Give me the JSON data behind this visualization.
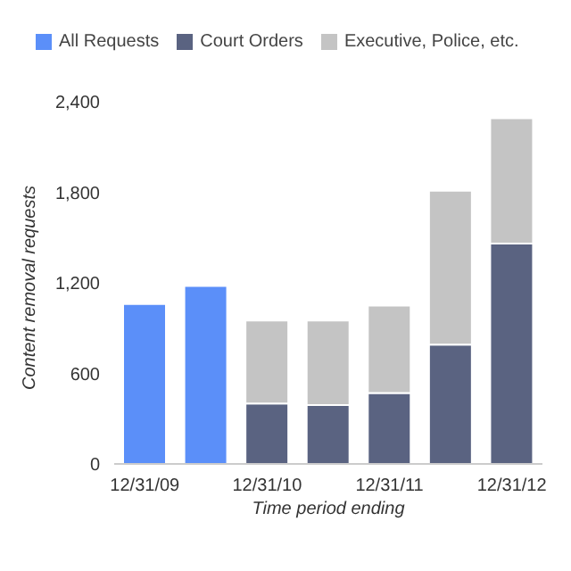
{
  "chart_data": {
    "type": "bar",
    "stacked": true,
    "xlabel": "Time period ending",
    "ylabel": "Content removal requests",
    "categories": [
      "12/31/09",
      null,
      "12/31/10",
      null,
      "12/31/11",
      null,
      "12/31/12"
    ],
    "series": [
      {
        "name": "All Requests",
        "color": "#5b8ff9",
        "values": [
          1060,
          1180,
          null,
          null,
          null,
          null,
          null
        ]
      },
      {
        "name": "Court Orders",
        "color": "#5a6381",
        "values": [
          null,
          null,
          400,
          390,
          470,
          790,
          1460
        ]
      },
      {
        "name": "Executive, Police, etc.",
        "color": "#c4c4c4",
        "values": [
          null,
          null,
          550,
          560,
          580,
          1020,
          830
        ]
      }
    ],
    "ylim": [
      0,
      2400
    ],
    "yticks": [
      {
        "value": 0,
        "label": "0"
      },
      {
        "value": 600,
        "label": "600"
      },
      {
        "value": 1200,
        "label": "1,200"
      },
      {
        "value": 1800,
        "label": "1,800"
      },
      {
        "value": 2400,
        "label": "2,400"
      }
    ],
    "grid": false,
    "legend": "top left"
  }
}
